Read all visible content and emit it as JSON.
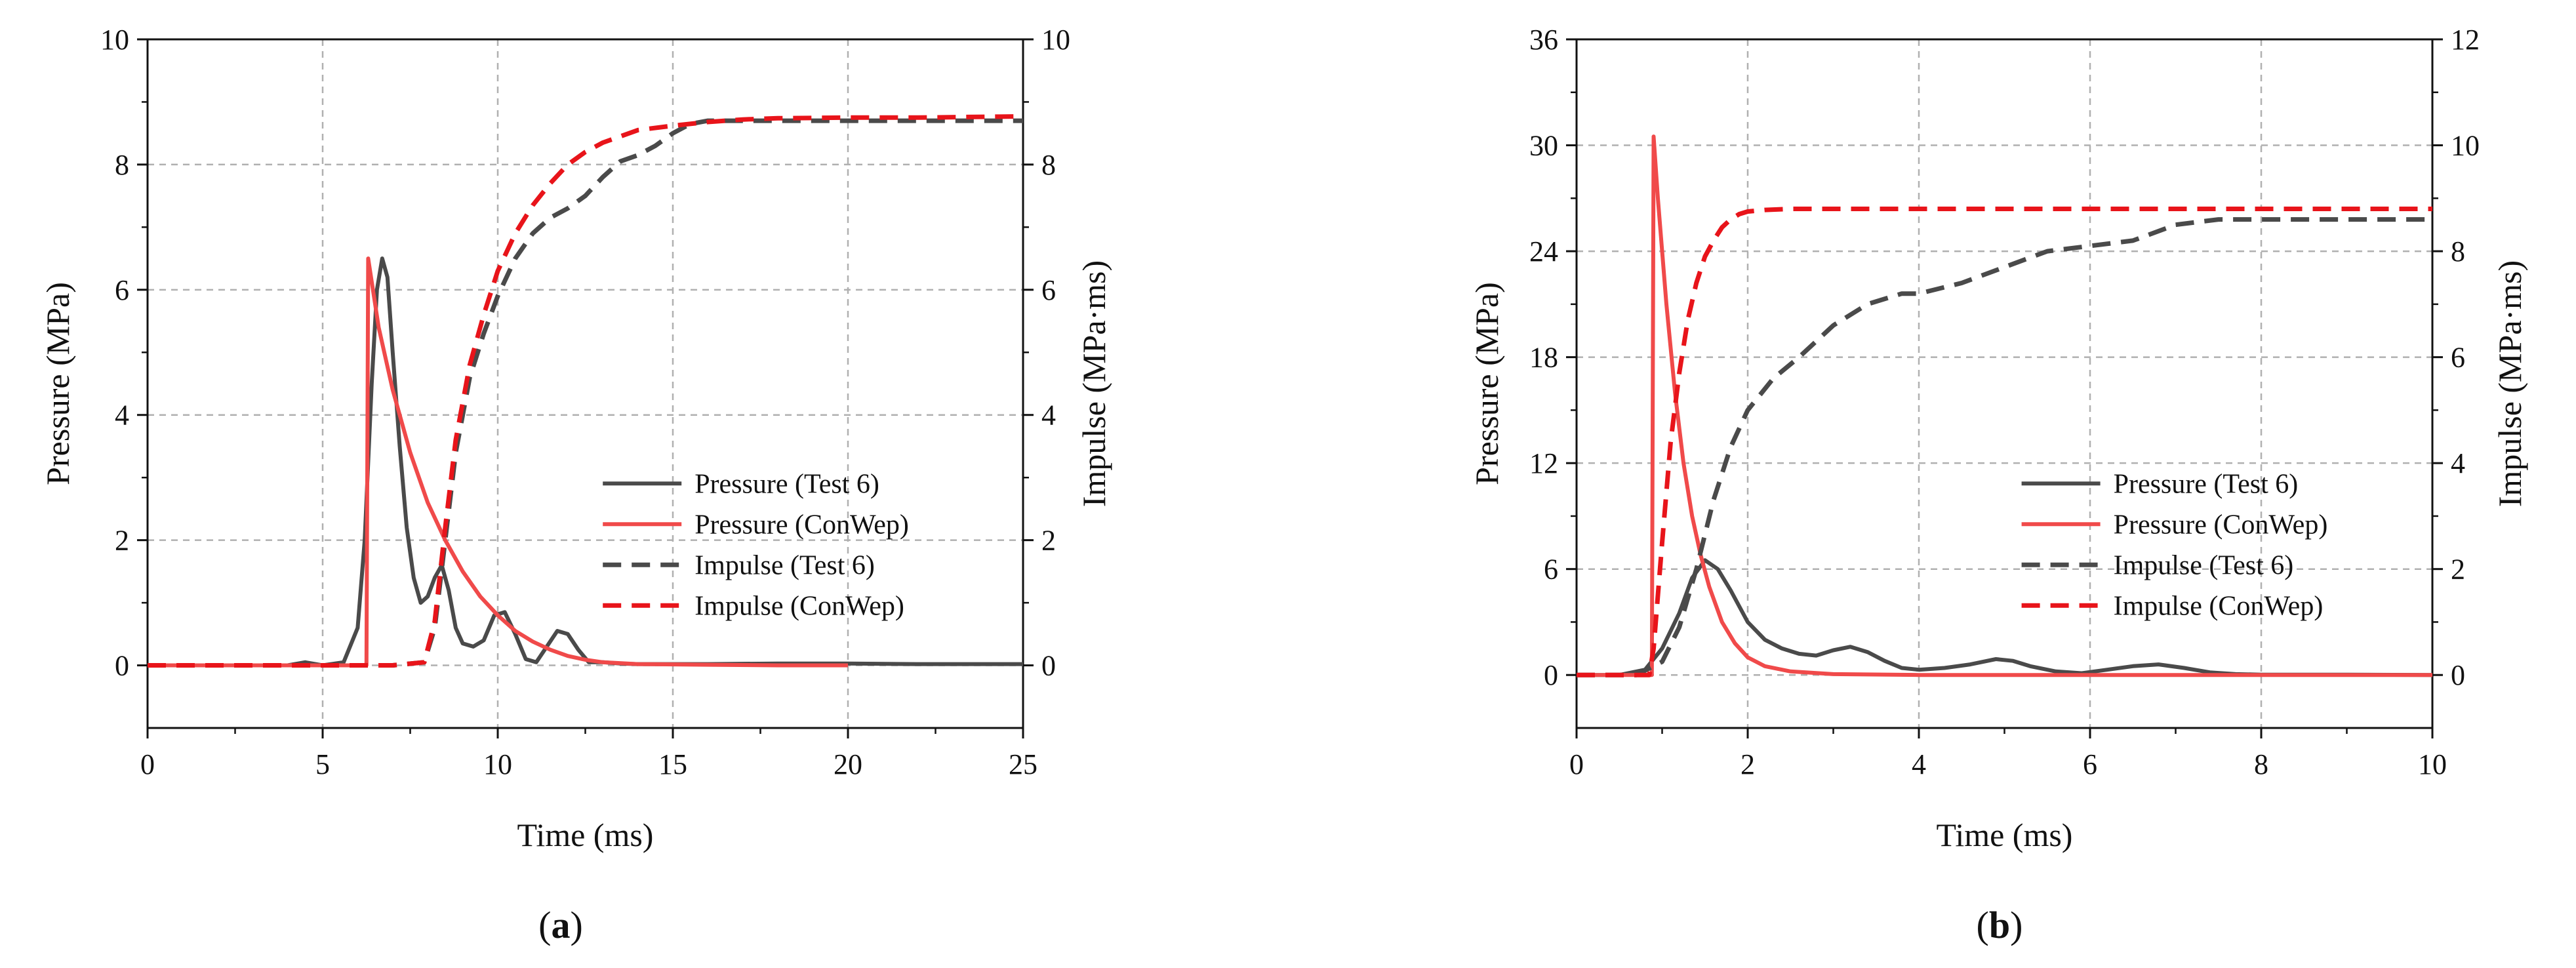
{
  "colors": {
    "test": "#4a4a4a",
    "conwep_pressure": "#f04a4a",
    "conwep_impulse": "#e8141a",
    "grid": "#b0b0b0",
    "axis": "#111111"
  },
  "chart_data": [
    {
      "panel_label_open": "(",
      "panel_label_letter": "a",
      "panel_label_close": ")",
      "type": "line",
      "xlabel": "Time (ms)",
      "ylabel": "Pressure (MPa)",
      "ylabel_right": "Impulse (MPa·ms)",
      "xlim": [
        0,
        25
      ],
      "ylim": [
        -1,
        10
      ],
      "ylim_right": [
        -1,
        10
      ],
      "xticks": [
        0,
        5,
        10,
        15,
        20,
        25
      ],
      "yticks": [
        0,
        2,
        4,
        6,
        8,
        10
      ],
      "yticks_right": [
        0,
        2,
        4,
        6,
        8,
        10
      ],
      "xticks_minor": [
        2.5,
        7.5,
        12.5,
        17.5,
        22.5
      ],
      "yticks_minor": [
        1,
        3,
        5,
        7,
        9
      ],
      "yticks_right_minor": [
        1,
        3,
        5,
        7,
        9
      ],
      "grid": true,
      "legend_position": "center-right",
      "series": [
        {
          "name": "Pressure (Test 6)",
          "axis": "left",
          "style": "solid",
          "color_key": "test",
          "x": [
            0,
            4,
            4.5,
            5,
            5.6,
            6.0,
            6.2,
            6.4,
            6.55,
            6.7,
            6.85,
            7.0,
            7.2,
            7.4,
            7.6,
            7.8,
            8.0,
            8.2,
            8.4,
            8.6,
            8.8,
            9.0,
            9.3,
            9.6,
            9.9,
            10.2,
            10.5,
            10.8,
            11.1,
            11.4,
            11.7,
            12.0,
            12.3,
            12.6,
            13.0,
            13.5,
            14,
            16,
            18,
            20,
            22,
            25
          ],
          "y": [
            0,
            0,
            0.05,
            0,
            0.05,
            0.6,
            2.0,
            4.5,
            6.0,
            6.5,
            6.2,
            5.0,
            3.5,
            2.2,
            1.4,
            1.0,
            1.1,
            1.4,
            1.6,
            1.2,
            0.6,
            0.35,
            0.3,
            0.4,
            0.8,
            0.85,
            0.5,
            0.1,
            0.05,
            0.3,
            0.55,
            0.5,
            0.25,
            0.05,
            0.05,
            0.03,
            0.02,
            0.02,
            0.03,
            0.03,
            0.02,
            0.02
          ]
        },
        {
          "name": "Pressure (ConWep)",
          "axis": "left",
          "style": "solid",
          "color_key": "conwep_pressure",
          "x": [
            0,
            6.2,
            6.25,
            6.3,
            6.6,
            7.0,
            7.5,
            8.0,
            8.5,
            9.0,
            9.5,
            10.0,
            10.5,
            11.0,
            11.5,
            12.0,
            12.5,
            13.0,
            14.0,
            16.0,
            18.0,
            20.0
          ],
          "y": [
            0,
            0,
            0,
            6.5,
            5.4,
            4.4,
            3.4,
            2.6,
            2.0,
            1.5,
            1.1,
            0.8,
            0.55,
            0.38,
            0.25,
            0.15,
            0.09,
            0.05,
            0.02,
            0.01,
            0.0,
            0.0
          ]
        },
        {
          "name": "Impulse (Test 6)",
          "axis": "right",
          "style": "dashed",
          "color_key": "test",
          "x": [
            0,
            7,
            7.9,
            8.2,
            8.5,
            8.8,
            9.2,
            9.6,
            10.0,
            10.5,
            11.0,
            11.5,
            12.0,
            12.5,
            13.0,
            13.5,
            14.0,
            14.5,
            15.0,
            15.5,
            16.0,
            17.0,
            18.0,
            20.0,
            22.0,
            25.0
          ],
          "y": [
            0,
            0,
            0.05,
            0.6,
            2.0,
            3.4,
            4.6,
            5.3,
            5.9,
            6.5,
            6.9,
            7.15,
            7.3,
            7.5,
            7.8,
            8.05,
            8.15,
            8.3,
            8.5,
            8.65,
            8.7,
            8.7,
            8.7,
            8.7,
            8.7,
            8.7
          ]
        },
        {
          "name": "Impulse (ConWep)",
          "axis": "right",
          "style": "dashed",
          "color_key": "conwep_impulse",
          "x": [
            0,
            7,
            7.9,
            8.2,
            8.5,
            8.8,
            9.2,
            9.6,
            10.0,
            10.5,
            11.0,
            11.5,
            12.0,
            12.5,
            13.0,
            13.5,
            14.0,
            15.0,
            16.0,
            17.0,
            18.0,
            20.0,
            22.0,
            25.0
          ],
          "y": [
            0,
            0,
            0.05,
            0.7,
            2.2,
            3.6,
            4.8,
            5.6,
            6.3,
            6.9,
            7.35,
            7.7,
            8.0,
            8.2,
            8.35,
            8.45,
            8.55,
            8.62,
            8.68,
            8.72,
            8.74,
            8.75,
            8.75,
            8.77
          ]
        }
      ]
    },
    {
      "panel_label_open": "(",
      "panel_label_letter": "b",
      "panel_label_close": ")",
      "type": "line",
      "xlabel": "Time (ms)",
      "ylabel": "Pressure (MPa)",
      "ylabel_right": "Impulse (MPa·ms)",
      "xlim": [
        0,
        10
      ],
      "ylim": [
        -3,
        36
      ],
      "ylim_right": [
        -1,
        12
      ],
      "xticks": [
        0,
        2,
        4,
        6,
        8,
        10
      ],
      "yticks": [
        0,
        6,
        12,
        18,
        24,
        30,
        36
      ],
      "yticks_right": [
        0,
        2,
        4,
        6,
        8,
        10,
        12
      ],
      "xticks_minor": [
        1,
        3,
        5,
        7,
        9
      ],
      "yticks_minor": [
        3,
        9,
        15,
        21,
        27,
        33
      ],
      "yticks_right_minor": [
        1,
        3,
        5,
        7,
        9,
        11
      ],
      "grid": true,
      "legend_position": "center-right",
      "series": [
        {
          "name": "Pressure (Test 6)",
          "axis": "left",
          "style": "solid",
          "color_key": "test",
          "x": [
            0,
            0.5,
            0.8,
            1.0,
            1.2,
            1.35,
            1.5,
            1.65,
            1.8,
            2.0,
            2.2,
            2.4,
            2.6,
            2.8,
            3.0,
            3.2,
            3.4,
            3.6,
            3.8,
            4.0,
            4.3,
            4.6,
            4.9,
            5.1,
            5.3,
            5.6,
            5.9,
            6.2,
            6.5,
            6.8,
            7.1,
            7.4,
            7.7,
            8.0,
            9.0,
            10.0
          ],
          "y": [
            0,
            0,
            0.3,
            1.5,
            3.5,
            5.5,
            6.5,
            6.0,
            4.8,
            3.0,
            2.0,
            1.5,
            1.2,
            1.1,
            1.4,
            1.6,
            1.3,
            0.8,
            0.4,
            0.3,
            0.4,
            0.6,
            0.9,
            0.8,
            0.5,
            0.2,
            0.1,
            0.3,
            0.5,
            0.6,
            0.4,
            0.15,
            0.05,
            0.02,
            0.02,
            0.0
          ]
        },
        {
          "name": "Pressure (ConWep)",
          "axis": "left",
          "style": "solid",
          "color_key": "conwep_pressure",
          "x": [
            0,
            0.85,
            0.88,
            0.9,
            0.95,
            1.05,
            1.15,
            1.25,
            1.35,
            1.45,
            1.55,
            1.7,
            1.85,
            2.0,
            2.2,
            2.5,
            3.0,
            4.0,
            6.0,
            10.0
          ],
          "y": [
            0,
            0,
            0,
            30.5,
            27.0,
            21.0,
            16.0,
            12.0,
            9.0,
            6.8,
            5.0,
            3.0,
            1.8,
            1.0,
            0.5,
            0.2,
            0.05,
            0.0,
            0.0,
            0.0
          ]
        },
        {
          "name": "Impulse (Test 6)",
          "axis": "right",
          "style": "dashed",
          "color_key": "test",
          "x": [
            0,
            0.7,
            1.0,
            1.2,
            1.4,
            1.6,
            1.8,
            2.0,
            2.3,
            2.6,
            3.0,
            3.4,
            3.8,
            4.0,
            4.5,
            5.0,
            5.5,
            6.0,
            6.5,
            7.0,
            7.5,
            8.0,
            9.0,
            10.0
          ],
          "y": [
            0,
            0,
            0.25,
            0.9,
            2.0,
            3.3,
            4.3,
            5.0,
            5.6,
            6.0,
            6.6,
            7.0,
            7.2,
            7.2,
            7.4,
            7.7,
            8.0,
            8.1,
            8.2,
            8.5,
            8.6,
            8.6,
            8.6,
            8.6
          ]
        },
        {
          "name": "Impulse (ConWep)",
          "axis": "right",
          "style": "dashed",
          "color_key": "conwep_impulse",
          "x": [
            0,
            0.85,
            0.9,
            1.0,
            1.1,
            1.2,
            1.3,
            1.4,
            1.5,
            1.6,
            1.7,
            1.8,
            1.9,
            2.0,
            2.2,
            2.5,
            3.0,
            4.0,
            6.0,
            8.0,
            10.0
          ],
          "y": [
            0,
            0,
            0.5,
            2.5,
            4.4,
            5.7,
            6.7,
            7.4,
            7.9,
            8.2,
            8.45,
            8.6,
            8.7,
            8.75,
            8.78,
            8.8,
            8.8,
            8.8,
            8.8,
            8.8,
            8.8
          ]
        }
      ]
    }
  ]
}
